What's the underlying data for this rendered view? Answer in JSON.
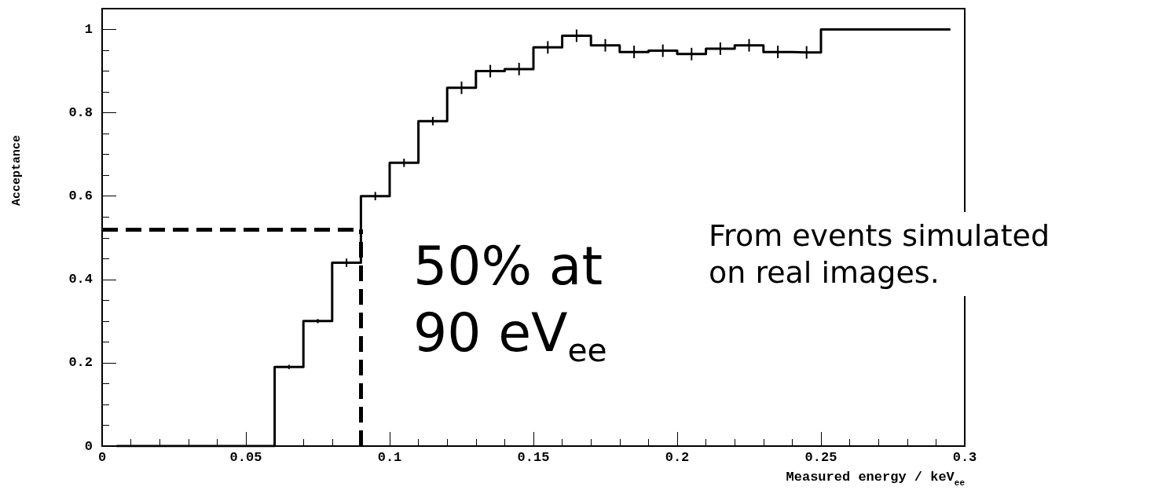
{
  "chart_data": {
    "type": "step",
    "xlabel": "Measured energy / keV$_{ee}$",
    "ylabel": "Acceptance",
    "x": [
      0.005,
      0.015,
      0.025,
      0.035,
      0.045,
      0.055,
      0.065,
      0.075,
      0.085,
      0.095,
      0.105,
      0.115,
      0.125,
      0.135,
      0.145,
      0.155,
      0.165,
      0.175,
      0.185,
      0.195,
      0.205,
      0.215,
      0.225,
      0.235,
      0.245,
      0.255,
      0.265,
      0.275,
      0.285,
      0.295
    ],
    "values": [
      0,
      0,
      0,
      0,
      0,
      0,
      0.19,
      0.3,
      0.44,
      0.6,
      0.68,
      0.78,
      0.86,
      0.9,
      0.905,
      0.957,
      0.985,
      0.962,
      0.946,
      0.949,
      0.941,
      0.954,
      0.962,
      0.946,
      0.945,
      1.0,
      1.0,
      1.0,
      1.0,
      1.0
    ],
    "errors": [
      null,
      null,
      null,
      null,
      null,
      null,
      0.005,
      0.005,
      0.01,
      0.01,
      0.01,
      0.01,
      0.015,
      0.015,
      0.015,
      0.015,
      0.015,
      0.015,
      0.015,
      0.015,
      0.015,
      0.015,
      0.015,
      0.015,
      0.015,
      null,
      null,
      null,
      null,
      null
    ],
    "color": "#000000",
    "xlim": [
      0,
      0.3
    ],
    "xticks": [
      0,
      0.05,
      0.1,
      0.15,
      0.2,
      0.25,
      0.3
    ],
    "ylim": [
      0,
      1.05
    ],
    "yticks": [
      0,
      0.2,
      0.4,
      0.6,
      0.8,
      1
    ],
    "ref_lines": [
      {
        "axis": "y",
        "value": 0.52,
        "line_style": "dashed"
      },
      {
        "axis": "x",
        "value": 0.09,
        "line_style": "dashed"
      }
    ],
    "annotations": [
      "50% at\n90 eV$_{ee}$",
      "From events simulated\non real images."
    ]
  }
}
